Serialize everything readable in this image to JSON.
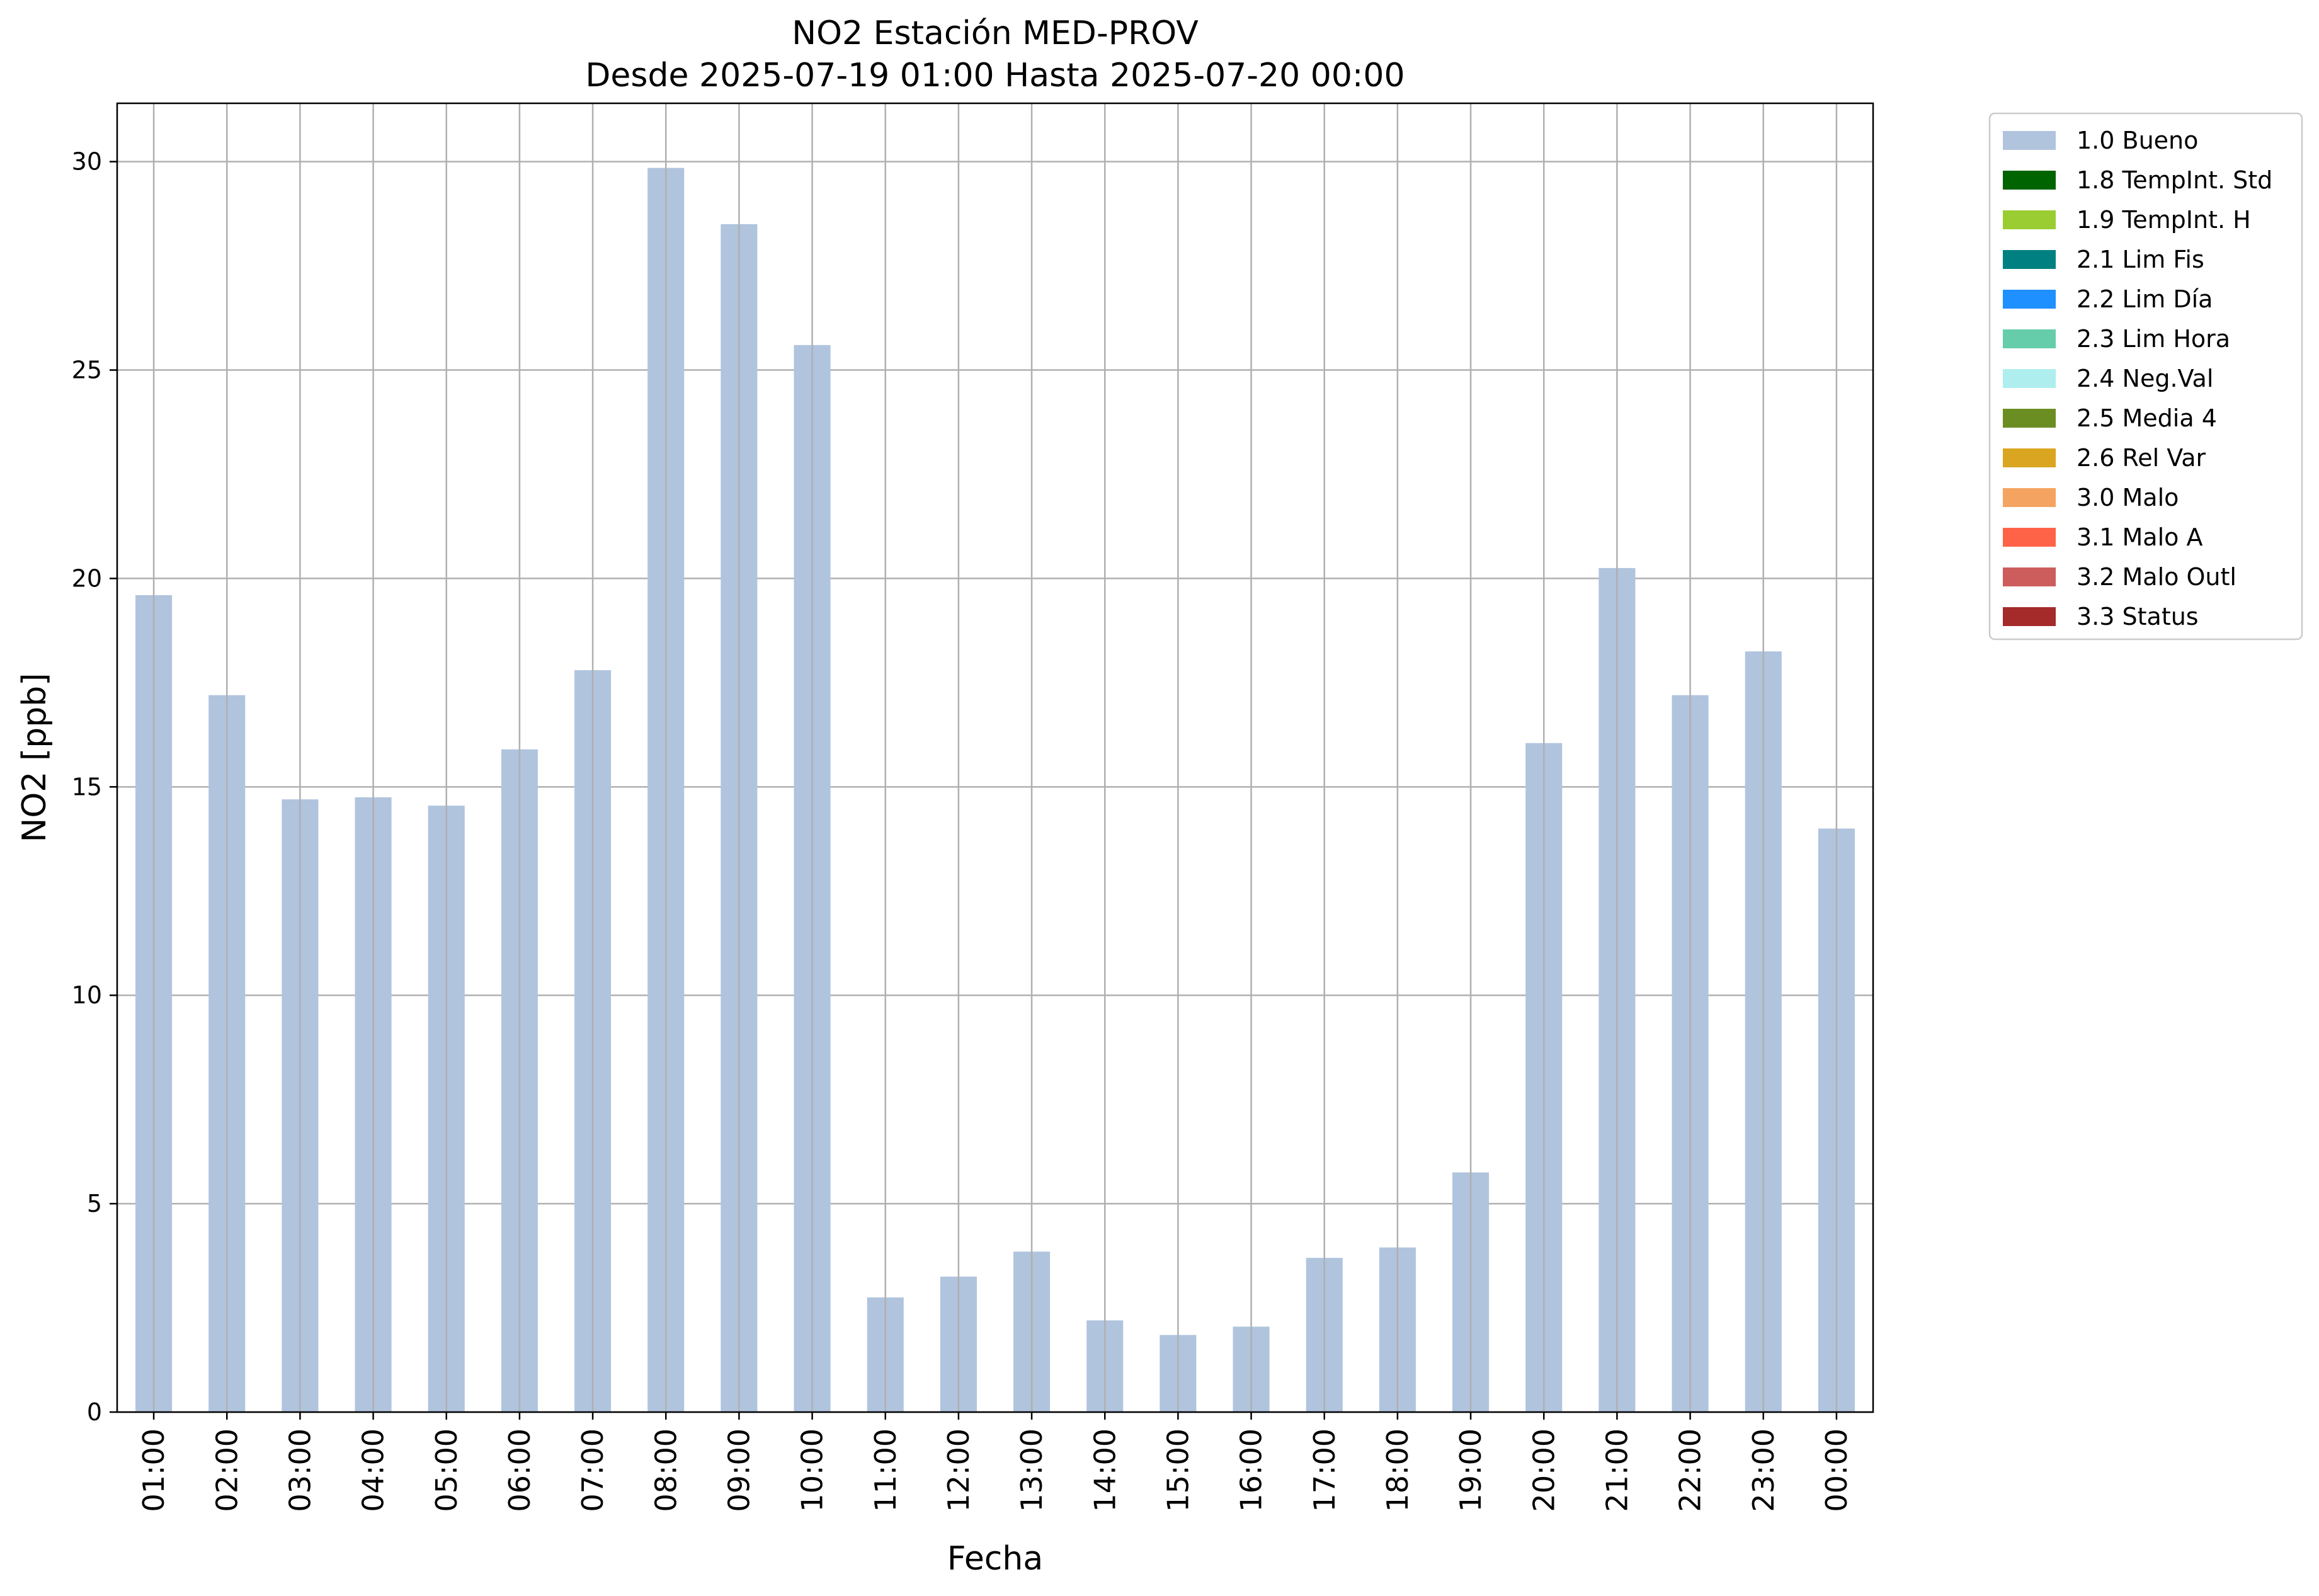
{
  "chart_data": {
    "type": "bar",
    "title": "NO2 Estación MED-PROV",
    "subtitle": "Desde 2025-07-19 01:00 Hasta 2025-07-20 00:00",
    "xlabel": "Fecha",
    "ylabel": "NO2 [ppb]",
    "ylim": [
      0,
      31.4
    ],
    "yticks": [
      0,
      5,
      10,
      15,
      20,
      25,
      30
    ],
    "grid": true,
    "legend_position": "outside-right",
    "categories": [
      "01:00",
      "02:00",
      "03:00",
      "04:00",
      "05:00",
      "06:00",
      "07:00",
      "08:00",
      "09:00",
      "10:00",
      "11:00",
      "12:00",
      "13:00",
      "14:00",
      "15:00",
      "16:00",
      "17:00",
      "18:00",
      "19:00",
      "20:00",
      "21:00",
      "22:00",
      "23:00",
      "00:00"
    ],
    "series": [
      {
        "name": "1.0 Bueno",
        "color": "#b0c4de",
        "values": [
          19.6,
          17.2,
          14.7,
          14.75,
          14.55,
          15.9,
          17.8,
          29.85,
          28.5,
          25.6,
          2.75,
          3.25,
          3.85,
          2.2,
          1.85,
          2.05,
          3.7,
          3.95,
          5.75,
          16.05,
          20.25,
          17.2,
          18.25,
          14.0
        ]
      }
    ],
    "legend": [
      {
        "label": "1.0 Bueno",
        "color": "#b0c4de"
      },
      {
        "label": "1.8 TempInt. Std",
        "color": "#006400"
      },
      {
        "label": "1.9 TempInt. H",
        "color": "#9acd32"
      },
      {
        "label": "2.1 Lim Fis",
        "color": "#008080"
      },
      {
        "label": "2.2 Lim Día",
        "color": "#1e90ff"
      },
      {
        "label": "2.3 Lim Hora",
        "color": "#66cdaa"
      },
      {
        "label": "2.4 Neg.Val",
        "color": "#afeeee"
      },
      {
        "label": "2.5 Media 4",
        "color": "#6b8e23"
      },
      {
        "label": "2.6 Rel Var",
        "color": "#daa520"
      },
      {
        "label": "3.0 Malo",
        "color": "#f4a460"
      },
      {
        "label": "3.1 Malo A",
        "color": "#ff6347"
      },
      {
        "label": "3.2 Malo Outl",
        "color": "#cd5c5c"
      },
      {
        "label": "3.3 Status",
        "color": "#a52a2a"
      }
    ]
  }
}
